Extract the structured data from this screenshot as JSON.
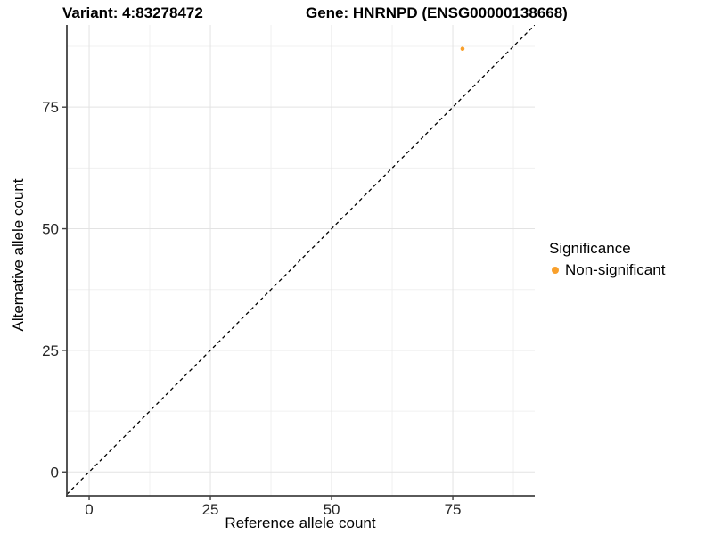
{
  "titles": {
    "variant": "Variant: 4:83278472",
    "gene": "Gene: HNRNPD (ENSG00000138668)"
  },
  "axes": {
    "x": {
      "label": "Reference allele count",
      "tick_labels": [
        "0",
        "25",
        "50",
        "75"
      ]
    },
    "y": {
      "label": "Alternative allele count",
      "tick_labels": [
        "0",
        "25",
        "50",
        "75"
      ]
    }
  },
  "legend": {
    "title": "Significance",
    "entries": [
      {
        "label": "Non-significant",
        "color": "#F9A02B",
        "marker": "circle"
      }
    ]
  },
  "colors": {
    "point": "#F9A02B",
    "identity_line": "#000000",
    "axis_line": "#424242",
    "grid_major": "#E3E3E3",
    "grid_minor": "#F0F0F0",
    "tick_label": "#262626",
    "background": "#FFFFFF"
  },
  "chart_data": {
    "type": "scatter",
    "title": "Variant: 4:83278472   Gene: HNRNPD (ENSG00000138668)",
    "xlabel": "Reference allele count",
    "ylabel": "Alternative allele count",
    "xlim": [
      -4.6,
      91.9
    ],
    "ylim": [
      -4.9,
      91.9
    ],
    "xticks": [
      0,
      25,
      50,
      75
    ],
    "yticks": [
      0,
      25,
      50,
      75
    ],
    "xticks_minor": [
      12.5,
      37.5,
      62.5,
      87.5
    ],
    "yticks_minor": [
      12.5,
      37.5,
      62.5,
      87.5
    ],
    "grid": "major-and-minor",
    "legend_position": "right",
    "legend_title": "Significance",
    "series": [
      {
        "name": "Non-significant",
        "color": "#F9A02B",
        "points": [
          {
            "x": 77,
            "y": 87
          }
        ]
      }
    ],
    "reference_line": {
      "type": "identity y=x",
      "style": "dashed",
      "color": "#000000"
    }
  }
}
